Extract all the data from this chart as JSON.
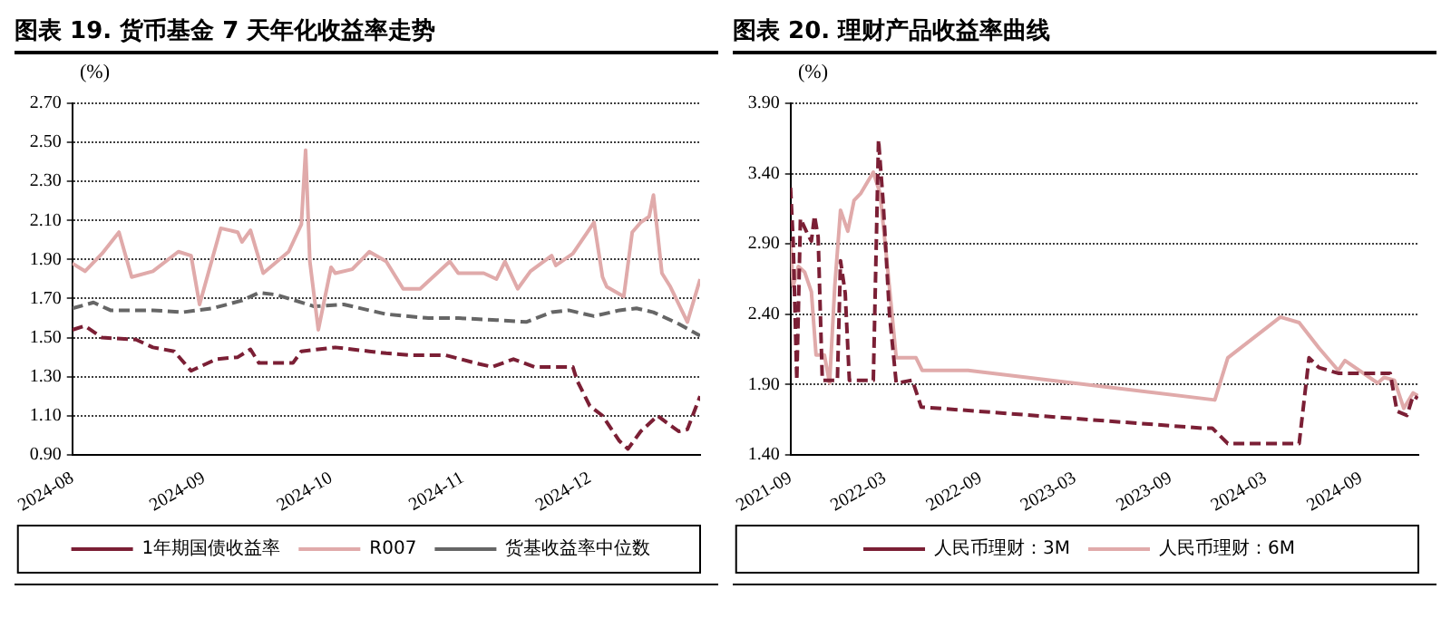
{
  "chart_data": [
    {
      "type": "line",
      "title": "图表 19. 货币基金 7 天年化收益率走势",
      "ylabel": "(%)",
      "xlim": [
        "2024-08-01",
        "2024-12-27"
      ],
      "xticks": [
        "2024-08",
        "2024-09",
        "2024-10",
        "2024-11",
        "2024-12"
      ],
      "ylim": [
        0.9,
        2.7
      ],
      "yticks": [
        {
          "value": 0.9,
          "label": "0.90"
        },
        {
          "value": 1.1,
          "label": "1.10"
        },
        {
          "value": 1.3,
          "label": "1.30"
        },
        {
          "value": 1.5,
          "label": "1.50"
        },
        {
          "value": 1.7,
          "label": "1.70"
        },
        {
          "value": 1.9,
          "label": "1.90"
        },
        {
          "value": 2.1,
          "label": "2.10"
        },
        {
          "value": 2.3,
          "label": "2.30"
        },
        {
          "value": 2.5,
          "label": "2.50"
        },
        {
          "value": 2.7,
          "label": "2.70"
        }
      ],
      "grid": "y",
      "legend": "bottom",
      "marker": "none",
      "series": [
        {
          "name": "1年期国债收益率",
          "color": "#7b1f35",
          "line_style": "dashed",
          "x": [
            "2024-08-01",
            "2024-08-04",
            "2024-08-08",
            "2024-08-16",
            "2024-08-20",
            "2024-08-25",
            "2024-08-29",
            "2024-09-04",
            "2024-09-09",
            "2024-09-12",
            "2024-09-14",
            "2024-09-22",
            "2024-09-24",
            "2024-10-02",
            "2024-10-10",
            "2024-10-14",
            "2024-10-20",
            "2024-10-28",
            "2024-11-04",
            "2024-11-08",
            "2024-11-13",
            "2024-11-18",
            "2024-11-27",
            "2024-11-28",
            "2024-12-01",
            "2024-12-04",
            "2024-12-08",
            "2024-12-10",
            "2024-12-13",
            "2024-12-17",
            "2024-12-20",
            "2024-12-22",
            "2024-12-24",
            "2024-12-27"
          ],
          "values": [
            1.54,
            1.56,
            1.5,
            1.49,
            1.45,
            1.43,
            1.33,
            1.39,
            1.4,
            1.44,
            1.37,
            1.37,
            1.43,
            1.45,
            1.43,
            1.42,
            1.41,
            1.41,
            1.37,
            1.35,
            1.39,
            1.35,
            1.35,
            1.28,
            1.15,
            1.1,
            0.97,
            0.93,
            1.02,
            1.1,
            1.05,
            1.02,
            1.03,
            1.2
          ]
        },
        {
          "name": "R007",
          "color": "#e0aaaa",
          "line_style": "solid",
          "x": [
            "2024-08-01",
            "2024-08-04",
            "2024-08-08",
            "2024-08-12",
            "2024-08-15",
            "2024-08-20",
            "2024-08-26",
            "2024-08-29",
            "2024-08-31",
            "2024-09-05",
            "2024-09-09",
            "2024-09-10",
            "2024-09-12",
            "2024-09-15",
            "2024-09-21",
            "2024-09-24",
            "2024-09-25",
            "2024-09-26",
            "2024-09-28",
            "2024-10-01",
            "2024-10-02",
            "2024-10-06",
            "2024-10-10",
            "2024-10-14",
            "2024-10-18",
            "2024-10-22",
            "2024-10-29",
            "2024-10-31",
            "2024-11-06",
            "2024-11-09",
            "2024-11-11",
            "2024-11-14",
            "2024-11-17",
            "2024-11-22",
            "2024-11-23",
            "2024-11-27",
            "2024-12-02",
            "2024-12-04",
            "2024-12-05",
            "2024-12-09",
            "2024-12-11",
            "2024-12-13",
            "2024-12-15",
            "2024-12-16",
            "2024-12-18",
            "2024-12-20",
            "2024-12-24",
            "2024-12-27"
          ],
          "values": [
            1.88,
            1.84,
            1.93,
            2.04,
            1.81,
            1.84,
            1.94,
            1.92,
            1.67,
            2.06,
            2.04,
            1.99,
            2.05,
            1.83,
            1.94,
            2.08,
            2.46,
            1.89,
            1.54,
            1.86,
            1.83,
            1.85,
            1.94,
            1.89,
            1.75,
            1.75,
            1.89,
            1.83,
            1.83,
            1.8,
            1.89,
            1.75,
            1.84,
            1.92,
            1.87,
            1.93,
            2.09,
            1.81,
            1.76,
            1.71,
            2.04,
            2.09,
            2.12,
            2.23,
            1.83,
            1.76,
            1.58,
            1.8
          ]
        },
        {
          "name": "货基收益率中位数",
          "color": "#666666",
          "line_style": "dashed",
          "x": [
            "2024-08-01",
            "2024-08-06",
            "2024-08-10",
            "2024-08-20",
            "2024-08-27",
            "2024-09-03",
            "2024-09-10",
            "2024-09-14",
            "2024-09-18",
            "2024-09-27",
            "2024-10-04",
            "2024-10-14",
            "2024-10-24",
            "2024-10-31",
            "2024-11-09",
            "2024-11-16",
            "2024-11-22",
            "2024-11-26",
            "2024-12-02",
            "2024-12-08",
            "2024-12-12",
            "2024-12-16",
            "2024-12-22",
            "2024-12-27"
          ],
          "values": [
            1.65,
            1.68,
            1.64,
            1.64,
            1.63,
            1.65,
            1.69,
            1.73,
            1.72,
            1.66,
            1.67,
            1.62,
            1.6,
            1.6,
            1.59,
            1.58,
            1.63,
            1.64,
            1.61,
            1.64,
            1.65,
            1.63,
            1.57,
            1.51
          ]
        }
      ]
    },
    {
      "type": "line",
      "title": "图表 20. 理财产品收益率曲线",
      "ylabel": "(%)",
      "xlim": [
        "2021-09-01",
        "2024-12-20"
      ],
      "xticks": [
        "2021-09",
        "2022-03",
        "2022-09",
        "2023-03",
        "2023-09",
        "2024-03",
        "2024-09"
      ],
      "ylim": [
        1.4,
        3.9
      ],
      "yticks": [
        {
          "value": 1.4,
          "label": "1.40"
        },
        {
          "value": 1.9,
          "label": "1.90"
        },
        {
          "value": 2.4,
          "label": "2.40"
        },
        {
          "value": 2.9,
          "label": "2.90"
        },
        {
          "value": 3.4,
          "label": "3.40"
        },
        {
          "value": 3.9,
          "label": "3.90"
        }
      ],
      "grid": "y",
      "legend": "bottom",
      "marker": "none",
      "series": [
        {
          "name": "人民币理财：3M",
          "color": "#7b1f35",
          "line_style": "dashed",
          "x": [
            "2021-09-01",
            "2021-09-06",
            "2021-09-13",
            "2021-09-20",
            "2021-10-05",
            "2021-10-11",
            "2021-10-17",
            "2021-10-24",
            "2021-11-01",
            "2021-11-30",
            "2021-12-06",
            "2021-12-15",
            "2021-12-23",
            "2022-02-07",
            "2022-02-17",
            "2022-02-26",
            "2022-03-10",
            "2022-03-23",
            "2022-04-23",
            "2022-05-10",
            "2023-10-31",
            "2023-11-20",
            "2023-12-20",
            "2024-05-05",
            "2024-05-24",
            "2024-06-12",
            "2024-07-19",
            "2024-10-27",
            "2024-11-09",
            "2024-11-28",
            "2024-12-10",
            "2024-12-19"
          ],
          "values": [
            3.3,
            2.92,
            1.93,
            3.08,
            2.96,
            2.92,
            3.1,
            2.95,
            1.93,
            1.93,
            2.78,
            2.55,
            1.93,
            1.93,
            3.64,
            3.19,
            2.4,
            1.91,
            1.93,
            1.74,
            1.59,
            1.59,
            1.48,
            1.48,
            2.09,
            2.02,
            1.98,
            1.98,
            1.71,
            1.68,
            1.82,
            1.8
          ]
        },
        {
          "name": "人民币理财：6M",
          "color": "#e0aaaa",
          "line_style": "solid",
          "x": [
            "2021-09-01",
            "2021-09-06",
            "2021-09-16",
            "2021-09-28",
            "2021-10-11",
            "2021-10-20",
            "2021-11-05",
            "2021-11-15",
            "2021-11-25",
            "2021-12-06",
            "2021-12-20",
            "2022-01-01",
            "2022-01-14",
            "2022-02-07",
            "2022-02-20",
            "2022-03-05",
            "2022-03-23",
            "2022-04-30",
            "2022-05-12",
            "2022-08-08",
            "2023-11-25",
            "2023-12-20",
            "2024-03-30",
            "2024-05-05",
            "2024-06-12",
            "2024-07-19",
            "2024-08-01",
            "2024-10-03",
            "2024-10-15",
            "2024-11-04",
            "2024-11-22",
            "2024-12-10",
            "2024-12-19"
          ],
          "values": [
            2.92,
            2.6,
            2.74,
            2.7,
            2.56,
            2.11,
            2.11,
            1.91,
            2.6,
            3.14,
            2.99,
            3.21,
            3.26,
            3.41,
            3.26,
            2.78,
            2.09,
            2.09,
            2.0,
            2.0,
            1.79,
            2.09,
            2.38,
            2.34,
            2.16,
            2.0,
            2.07,
            1.91,
            1.95,
            1.93,
            1.73,
            1.84,
            1.82
          ]
        }
      ]
    }
  ]
}
